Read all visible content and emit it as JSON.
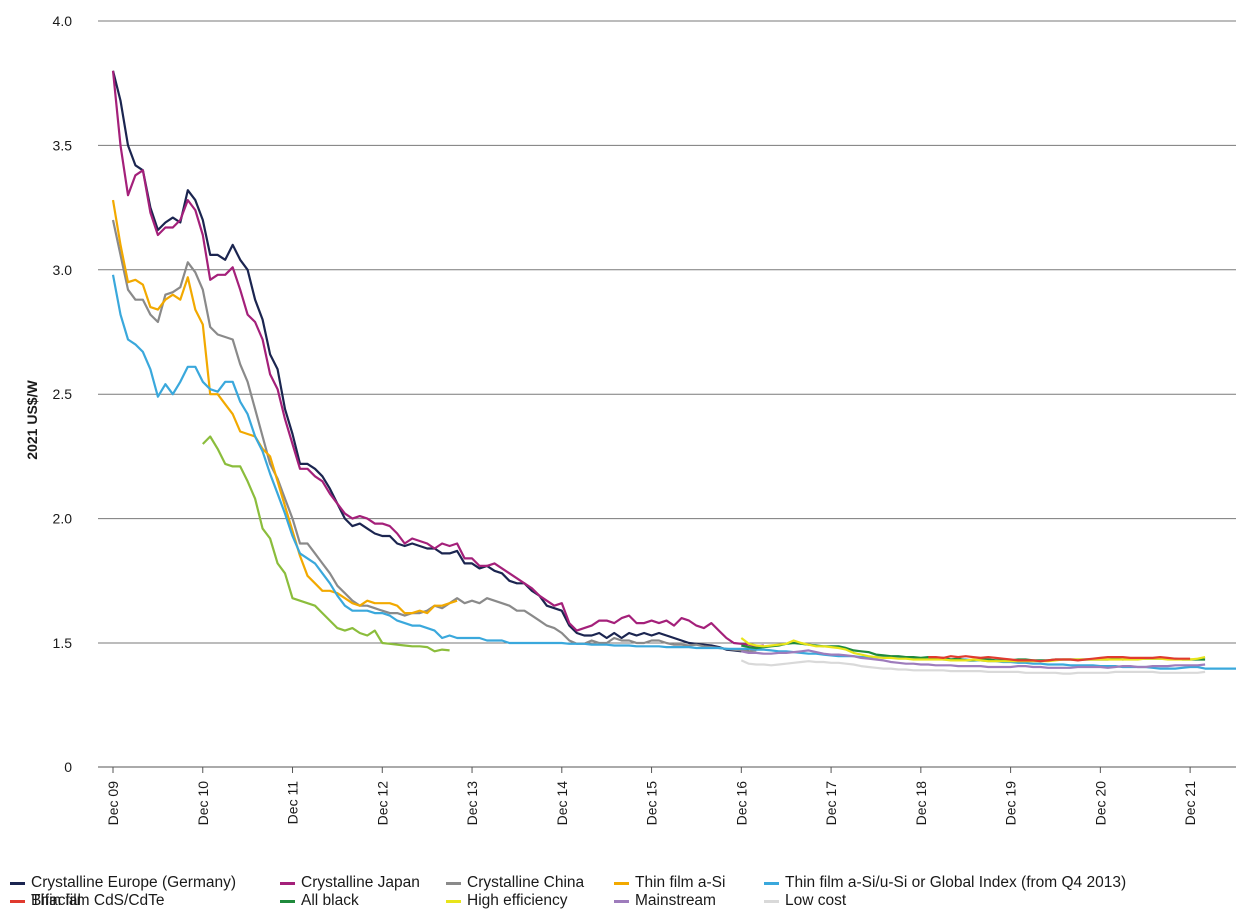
{
  "chart_data": {
    "type": "line",
    "title": "",
    "xlabel": "",
    "ylabel": "2021 US$/W",
    "y_ticks": [
      "0",
      "1.5",
      "2.0",
      "2.5",
      "3.0",
      "3.5",
      "4.0"
    ],
    "y_axis_note": "broken axis: 0 then 1.5 to 4.0",
    "x_ticks": [
      "Dec 09",
      "Dec 10",
      "Dec 11",
      "Dec 12",
      "Dec 13",
      "Dec 14",
      "Dec 15",
      "Dec 16",
      "Dec 17",
      "Dec 18",
      "Dec 19",
      "Dec 20",
      "Dec 21"
    ],
    "grid": "horizontal",
    "legend_position": "bottom",
    "series": [
      {
        "name": "Crystalline Europe (Germany)",
        "color": "#1b2550",
        "start": "Dec 09",
        "values": [
          3.8,
          3.68,
          3.5,
          3.42,
          3.4,
          3.25,
          3.16,
          3.19,
          3.21,
          3.19,
          3.32,
          3.28,
          3.2,
          3.06,
          3.06,
          3.04,
          3.1,
          3.04,
          3.0,
          2.88,
          2.8,
          2.66,
          2.6,
          2.44,
          2.34,
          2.22,
          2.22,
          2.2,
          2.17,
          2.12,
          2.06,
          2.0,
          1.97,
          1.98,
          1.96,
          1.94,
          1.93,
          1.93,
          1.9,
          1.89,
          1.9,
          1.89,
          1.88,
          1.88,
          1.86,
          1.86,
          1.87,
          1.82,
          1.82,
          1.8,
          1.81,
          1.79,
          1.78,
          1.75,
          1.74,
          1.74,
          1.71,
          1.69,
          1.65,
          1.64,
          1.63,
          1.57,
          1.54,
          1.53,
          1.53,
          1.54,
          1.52,
          1.54,
          1.52,
          1.54,
          1.53,
          1.54,
          1.53,
          1.54,
          1.53,
          1.52,
          1.51,
          1.5,
          1.49,
          1.48,
          1.47,
          1.45,
          1.42,
          1.41,
          1.4,
          1.41
        ]
      },
      {
        "name": "Crystalline Japan",
        "color": "#a4207a",
        "start": "Dec 09",
        "values": [
          3.8,
          3.5,
          3.3,
          3.38,
          3.4,
          3.23,
          3.14,
          3.17,
          3.17,
          3.2,
          3.28,
          3.24,
          3.14,
          2.96,
          2.98,
          2.98,
          3.01,
          2.92,
          2.82,
          2.79,
          2.72,
          2.58,
          2.52,
          2.4,
          2.3,
          2.2,
          2.2,
          2.17,
          2.15,
          2.1,
          2.06,
          2.02,
          2.0,
          2.01,
          2.0,
          1.98,
          1.98,
          1.97,
          1.94,
          1.9,
          1.92,
          1.91,
          1.9,
          1.88,
          1.9,
          1.89,
          1.9,
          1.84,
          1.84,
          1.81,
          1.81,
          1.82,
          1.8,
          1.78,
          1.76,
          1.74,
          1.72,
          1.69,
          1.67,
          1.65,
          1.66,
          1.58,
          1.55,
          1.56,
          1.57,
          1.59,
          1.59,
          1.58,
          1.6,
          1.61,
          1.58,
          1.58,
          1.59,
          1.58,
          1.59,
          1.57,
          1.6,
          1.59,
          1.57,
          1.56,
          1.58,
          1.55,
          1.52,
          1.5,
          1.49,
          1.48,
          1.46,
          1.47
        ]
      },
      {
        "name": "Crystalline China",
        "color": "#8a8a8a",
        "start": "Dec 09",
        "values": [
          3.2,
          3.06,
          2.92,
          2.88,
          2.88,
          2.82,
          2.79,
          2.9,
          2.91,
          2.93,
          3.03,
          2.99,
          2.92,
          2.77,
          2.74,
          2.73,
          2.72,
          2.62,
          2.55,
          2.44,
          2.33,
          2.22,
          2.16,
          2.08,
          2.0,
          1.9,
          1.9,
          1.86,
          1.82,
          1.78,
          1.73,
          1.7,
          1.67,
          1.65,
          1.65,
          1.64,
          1.63,
          1.62,
          1.62,
          1.61,
          1.62,
          1.62,
          1.63,
          1.65,
          1.64,
          1.66,
          1.68,
          1.66,
          1.67,
          1.66,
          1.68,
          1.67,
          1.66,
          1.65,
          1.63,
          1.63,
          1.61,
          1.59,
          1.57,
          1.56,
          1.54,
          1.51,
          1.49,
          1.49,
          1.51,
          1.5,
          1.5,
          1.52,
          1.51,
          1.51,
          1.5,
          1.5,
          1.51,
          1.51,
          1.5,
          1.48,
          1.48,
          1.47,
          1.48,
          1.46,
          1.45,
          1.44,
          1.43,
          1.42,
          1.41,
          1.4,
          1.41
        ]
      },
      {
        "name": "Thin film a-Si",
        "color": "#f2a900",
        "start": "Dec 09",
        "values": [
          3.28,
          3.1,
          2.95,
          2.96,
          2.94,
          2.85,
          2.84,
          2.88,
          2.9,
          2.88,
          2.97,
          2.84,
          2.78,
          2.5,
          2.5,
          2.46,
          2.42,
          2.35,
          2.34,
          2.33,
          2.28,
          2.25,
          2.15,
          2.05,
          1.95,
          1.85,
          1.77,
          1.74,
          1.71,
          1.71,
          1.7,
          1.68,
          1.66,
          1.65,
          1.67,
          1.66,
          1.66,
          1.66,
          1.65,
          1.62,
          1.62,
          1.63,
          1.62,
          1.65,
          1.65,
          1.66,
          1.67
        ]
      },
      {
        "name": "Thin film a-Si/u-Si or Global Index (from Q4 2013)",
        "color": "#3aa8dc",
        "start": "Dec 09",
        "values": [
          2.98,
          2.82,
          2.72,
          2.7,
          2.67,
          2.6,
          2.49,
          2.54,
          2.5,
          2.55,
          2.61,
          2.61,
          2.55,
          2.52,
          2.51,
          2.55,
          2.55,
          2.47,
          2.42,
          2.33,
          2.27,
          2.18,
          2.1,
          2.02,
          1.93,
          1.86,
          1.84,
          1.82,
          1.78,
          1.74,
          1.69,
          1.65,
          1.63,
          1.63,
          1.63,
          1.62,
          1.62,
          1.61,
          1.59,
          1.58,
          1.57,
          1.57,
          1.56,
          1.55,
          1.52,
          1.53,
          1.52,
          1.52,
          1.52,
          1.52,
          1.51,
          1.51,
          1.51,
          1.5,
          1.5,
          1.5,
          1.5,
          1.5,
          1.5,
          1.5,
          1.5,
          1.49,
          1.49,
          1.49,
          1.48,
          1.48,
          1.48,
          1.47,
          1.47,
          1.47,
          1.46,
          1.46,
          1.46,
          1.46,
          1.45,
          1.45,
          1.45,
          1.45,
          1.44,
          1.44,
          1.44,
          1.44,
          1.43,
          1.43,
          1.43,
          1.43,
          1.42,
          1.42,
          1.41,
          1.4,
          1.4,
          1.39,
          1.38,
          1.37,
          1.37,
          1.36,
          1.35,
          1.34,
          1.34,
          1.34,
          1.33,
          1.33,
          1.33,
          1.33,
          1.32,
          1.32,
          1.32,
          1.32,
          1.31,
          1.31,
          1.31,
          1.3,
          1.3,
          1.3,
          1.3,
          1.29,
          1.29,
          1.28,
          1.28,
          1.27,
          1.27,
          1.26,
          1.26,
          1.25,
          1.25,
          1.24,
          1.24,
          1.24,
          1.23,
          1.23,
          1.23,
          1.23,
          1.22,
          1.22,
          1.22,
          1.21,
          1.21,
          1.21,
          1.21,
          1.2,
          1.19,
          1.19,
          1.19,
          1.2,
          1.21,
          1.21,
          1.19,
          1.19,
          1.19,
          1.19,
          1.19,
          1.19
        ]
      },
      {
        "name": "Thin film CdS/CdTe",
        "color": "#8bbd3c",
        "start": "Dec 10",
        "values": [
          2.3,
          2.33,
          2.28,
          2.22,
          2.21,
          2.21,
          2.15,
          2.08,
          1.96,
          1.92,
          1.82,
          1.78,
          1.68,
          1.67,
          1.66,
          1.65,
          1.62,
          1.59,
          1.56,
          1.55,
          1.56,
          1.54,
          1.53,
          1.55,
          1.5,
          1.49,
          1.48,
          1.47,
          1.46,
          1.46,
          1.45,
          1.4,
          1.42,
          1.41
        ]
      },
      {
        "name": "All black",
        "color": "#1f8a3c",
        "start": "Dec 16",
        "values": [
          1.47,
          1.45,
          1.44,
          1.45,
          1.46,
          1.47,
          1.49,
          1.5,
          1.49,
          1.48,
          1.47,
          1.46,
          1.46,
          1.46,
          1.44,
          1.41,
          1.4,
          1.39,
          1.36,
          1.35,
          1.34,
          1.34,
          1.33,
          1.33,
          1.32,
          1.33,
          1.31,
          1.32,
          1.3,
          1.31,
          1.29,
          1.29,
          1.3,
          1.3,
          1.29,
          1.29,
          1.29,
          1.3,
          1.3,
          1.29,
          1.29,
          1.29,
          1.3,
          1.3,
          1.3,
          1.3,
          1.3,
          1.3,
          1.3,
          1.3,
          1.31,
          1.3,
          1.31,
          1.31,
          1.31,
          1.31,
          1.31,
          1.31,
          1.31,
          1.3,
          1.3,
          1.3,
          1.3
        ]
      },
      {
        "name": "High efficiency",
        "color": "#e8e41a",
        "start": "Dec 16",
        "values": [
          1.52,
          1.49,
          1.47,
          1.46,
          1.47,
          1.48,
          1.49,
          1.51,
          1.5,
          1.48,
          1.46,
          1.46,
          1.45,
          1.44,
          1.42,
          1.38,
          1.36,
          1.34,
          1.33,
          1.32,
          1.32,
          1.31,
          1.31,
          1.3,
          1.3,
          1.3,
          1.3,
          1.3,
          1.29,
          1.29,
          1.29,
          1.3,
          1.29,
          1.28,
          1.28,
          1.28,
          1.28,
          1.28,
          1.28,
          1.28,
          1.28,
          1.28,
          1.29,
          1.3,
          1.3,
          1.3,
          1.3,
          1.3,
          1.3,
          1.3,
          1.3,
          1.3,
          1.3,
          1.3,
          1.31,
          1.31,
          1.31,
          1.3,
          1.3,
          1.3,
          1.3,
          1.31,
          1.33
        ]
      },
      {
        "name": "Mainstream",
        "color": "#9e7cbc",
        "start": "Dec 16",
        "values": [
          1.4,
          1.38,
          1.38,
          1.37,
          1.37,
          1.38,
          1.38,
          1.39,
          1.4,
          1.41,
          1.39,
          1.37,
          1.36,
          1.36,
          1.35,
          1.34,
          1.32,
          1.31,
          1.3,
          1.29,
          1.27,
          1.26,
          1.25,
          1.25,
          1.24,
          1.24,
          1.23,
          1.23,
          1.23,
          1.22,
          1.22,
          1.22,
          1.22,
          1.21,
          1.21,
          1.21,
          1.21,
          1.22,
          1.22,
          1.21,
          1.21,
          1.2,
          1.2,
          1.2,
          1.2,
          1.21,
          1.21,
          1.21,
          1.21,
          1.2,
          1.21,
          1.22,
          1.22,
          1.21,
          1.21,
          1.22,
          1.22,
          1.22,
          1.23,
          1.23,
          1.23,
          1.23,
          1.24
        ]
      },
      {
        "name": "Low cost",
        "color": "#d9d9d9",
        "start": "Dec 16",
        "values": [
          1.29,
          1.25,
          1.24,
          1.24,
          1.23,
          1.24,
          1.25,
          1.26,
          1.27,
          1.28,
          1.27,
          1.27,
          1.26,
          1.26,
          1.25,
          1.24,
          1.22,
          1.21,
          1.2,
          1.19,
          1.19,
          1.18,
          1.18,
          1.17,
          1.17,
          1.17,
          1.17,
          1.17,
          1.16,
          1.16,
          1.16,
          1.16,
          1.16,
          1.15,
          1.15,
          1.15,
          1.15,
          1.15,
          1.14,
          1.14,
          1.14,
          1.14,
          1.14,
          1.13,
          1.13,
          1.14,
          1.14,
          1.14,
          1.14,
          1.14,
          1.15,
          1.15,
          1.15,
          1.15,
          1.15,
          1.15,
          1.14,
          1.14,
          1.14,
          1.14,
          1.14,
          1.14,
          1.15
        ]
      },
      {
        "name": "Bifacial",
        "color": "#e03a2e",
        "start": "Jan 19",
        "values": [
          1.33,
          1.33,
          1.32,
          1.34,
          1.33,
          1.34,
          1.33,
          1.32,
          1.33,
          1.32,
          1.31,
          1.3,
          1.29,
          1.29,
          1.29,
          1.28,
          1.29,
          1.3,
          1.3,
          1.3,
          1.29,
          1.3,
          1.31,
          1.32,
          1.33,
          1.33,
          1.33,
          1.32,
          1.32,
          1.32,
          1.32,
          1.33,
          1.32,
          1.31,
          1.31,
          1.31
        ]
      }
    ]
  }
}
